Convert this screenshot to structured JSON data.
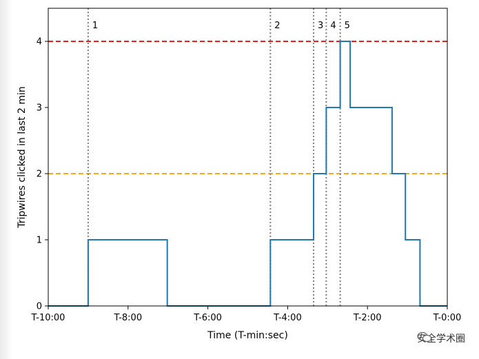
{
  "chart_data": {
    "type": "line",
    "xlabel": "Time (T-min:sec)",
    "ylabel": "Tripwires clicked in last 2 min",
    "xlim": [
      -600,
      0
    ],
    "ylim": [
      0,
      4.5
    ],
    "x_ticks": [
      {
        "value": -600,
        "label": "T-10:00"
      },
      {
        "value": -480,
        "label": "T-8:00"
      },
      {
        "value": -360,
        "label": "T-6:00"
      },
      {
        "value": -240,
        "label": "T-4:00"
      },
      {
        "value": -120,
        "label": "T-2:00"
      },
      {
        "value": 0,
        "label": "T-0:00"
      }
    ],
    "y_ticks": [
      {
        "value": 0,
        "label": "0"
      },
      {
        "value": 1,
        "label": "1"
      },
      {
        "value": 2,
        "label": "2"
      },
      {
        "value": 3,
        "label": "3"
      },
      {
        "value": 4,
        "label": "4"
      }
    ],
    "series": [
      {
        "color": "#1f77b4",
        "step": true,
        "points": [
          [
            -600,
            0
          ],
          [
            -540,
            0
          ],
          [
            -540,
            1
          ],
          [
            -421,
            1
          ],
          [
            -421,
            0
          ],
          [
            -266,
            0
          ],
          [
            -266,
            1
          ],
          [
            -201,
            1
          ],
          [
            -201,
            2
          ],
          [
            -182,
            2
          ],
          [
            -182,
            3
          ],
          [
            -161,
            3
          ],
          [
            -161,
            4
          ],
          [
            -146,
            4
          ],
          [
            -146,
            3
          ],
          [
            -83,
            3
          ],
          [
            -83,
            2
          ],
          [
            -63,
            2
          ],
          [
            -63,
            1
          ],
          [
            -41,
            1
          ],
          [
            -41,
            0
          ],
          [
            0,
            0
          ]
        ]
      }
    ],
    "threshold_lines": [
      {
        "y": 4,
        "color": "#e8201b",
        "style": "dashed"
      },
      {
        "y": 2,
        "color": "#f2a91e",
        "style": "dashed"
      }
    ],
    "event_lines": [
      {
        "x": -540,
        "label": "1",
        "color": "#7f7f7f",
        "style": "dotted"
      },
      {
        "x": -266,
        "label": "2",
        "color": "#7f7f7f",
        "style": "dotted"
      },
      {
        "x": -201,
        "label": "3",
        "color": "#7f7f7f",
        "style": "dotted"
      },
      {
        "x": -182,
        "label": "4",
        "color": "#7f7f7f",
        "style": "dotted"
      },
      {
        "x": -161,
        "label": "5",
        "color": "#7f7f7f",
        "style": "dotted"
      }
    ],
    "grid": false
  },
  "watermark": {
    "text": "安全学术圈",
    "icon": "wechat-icon"
  }
}
